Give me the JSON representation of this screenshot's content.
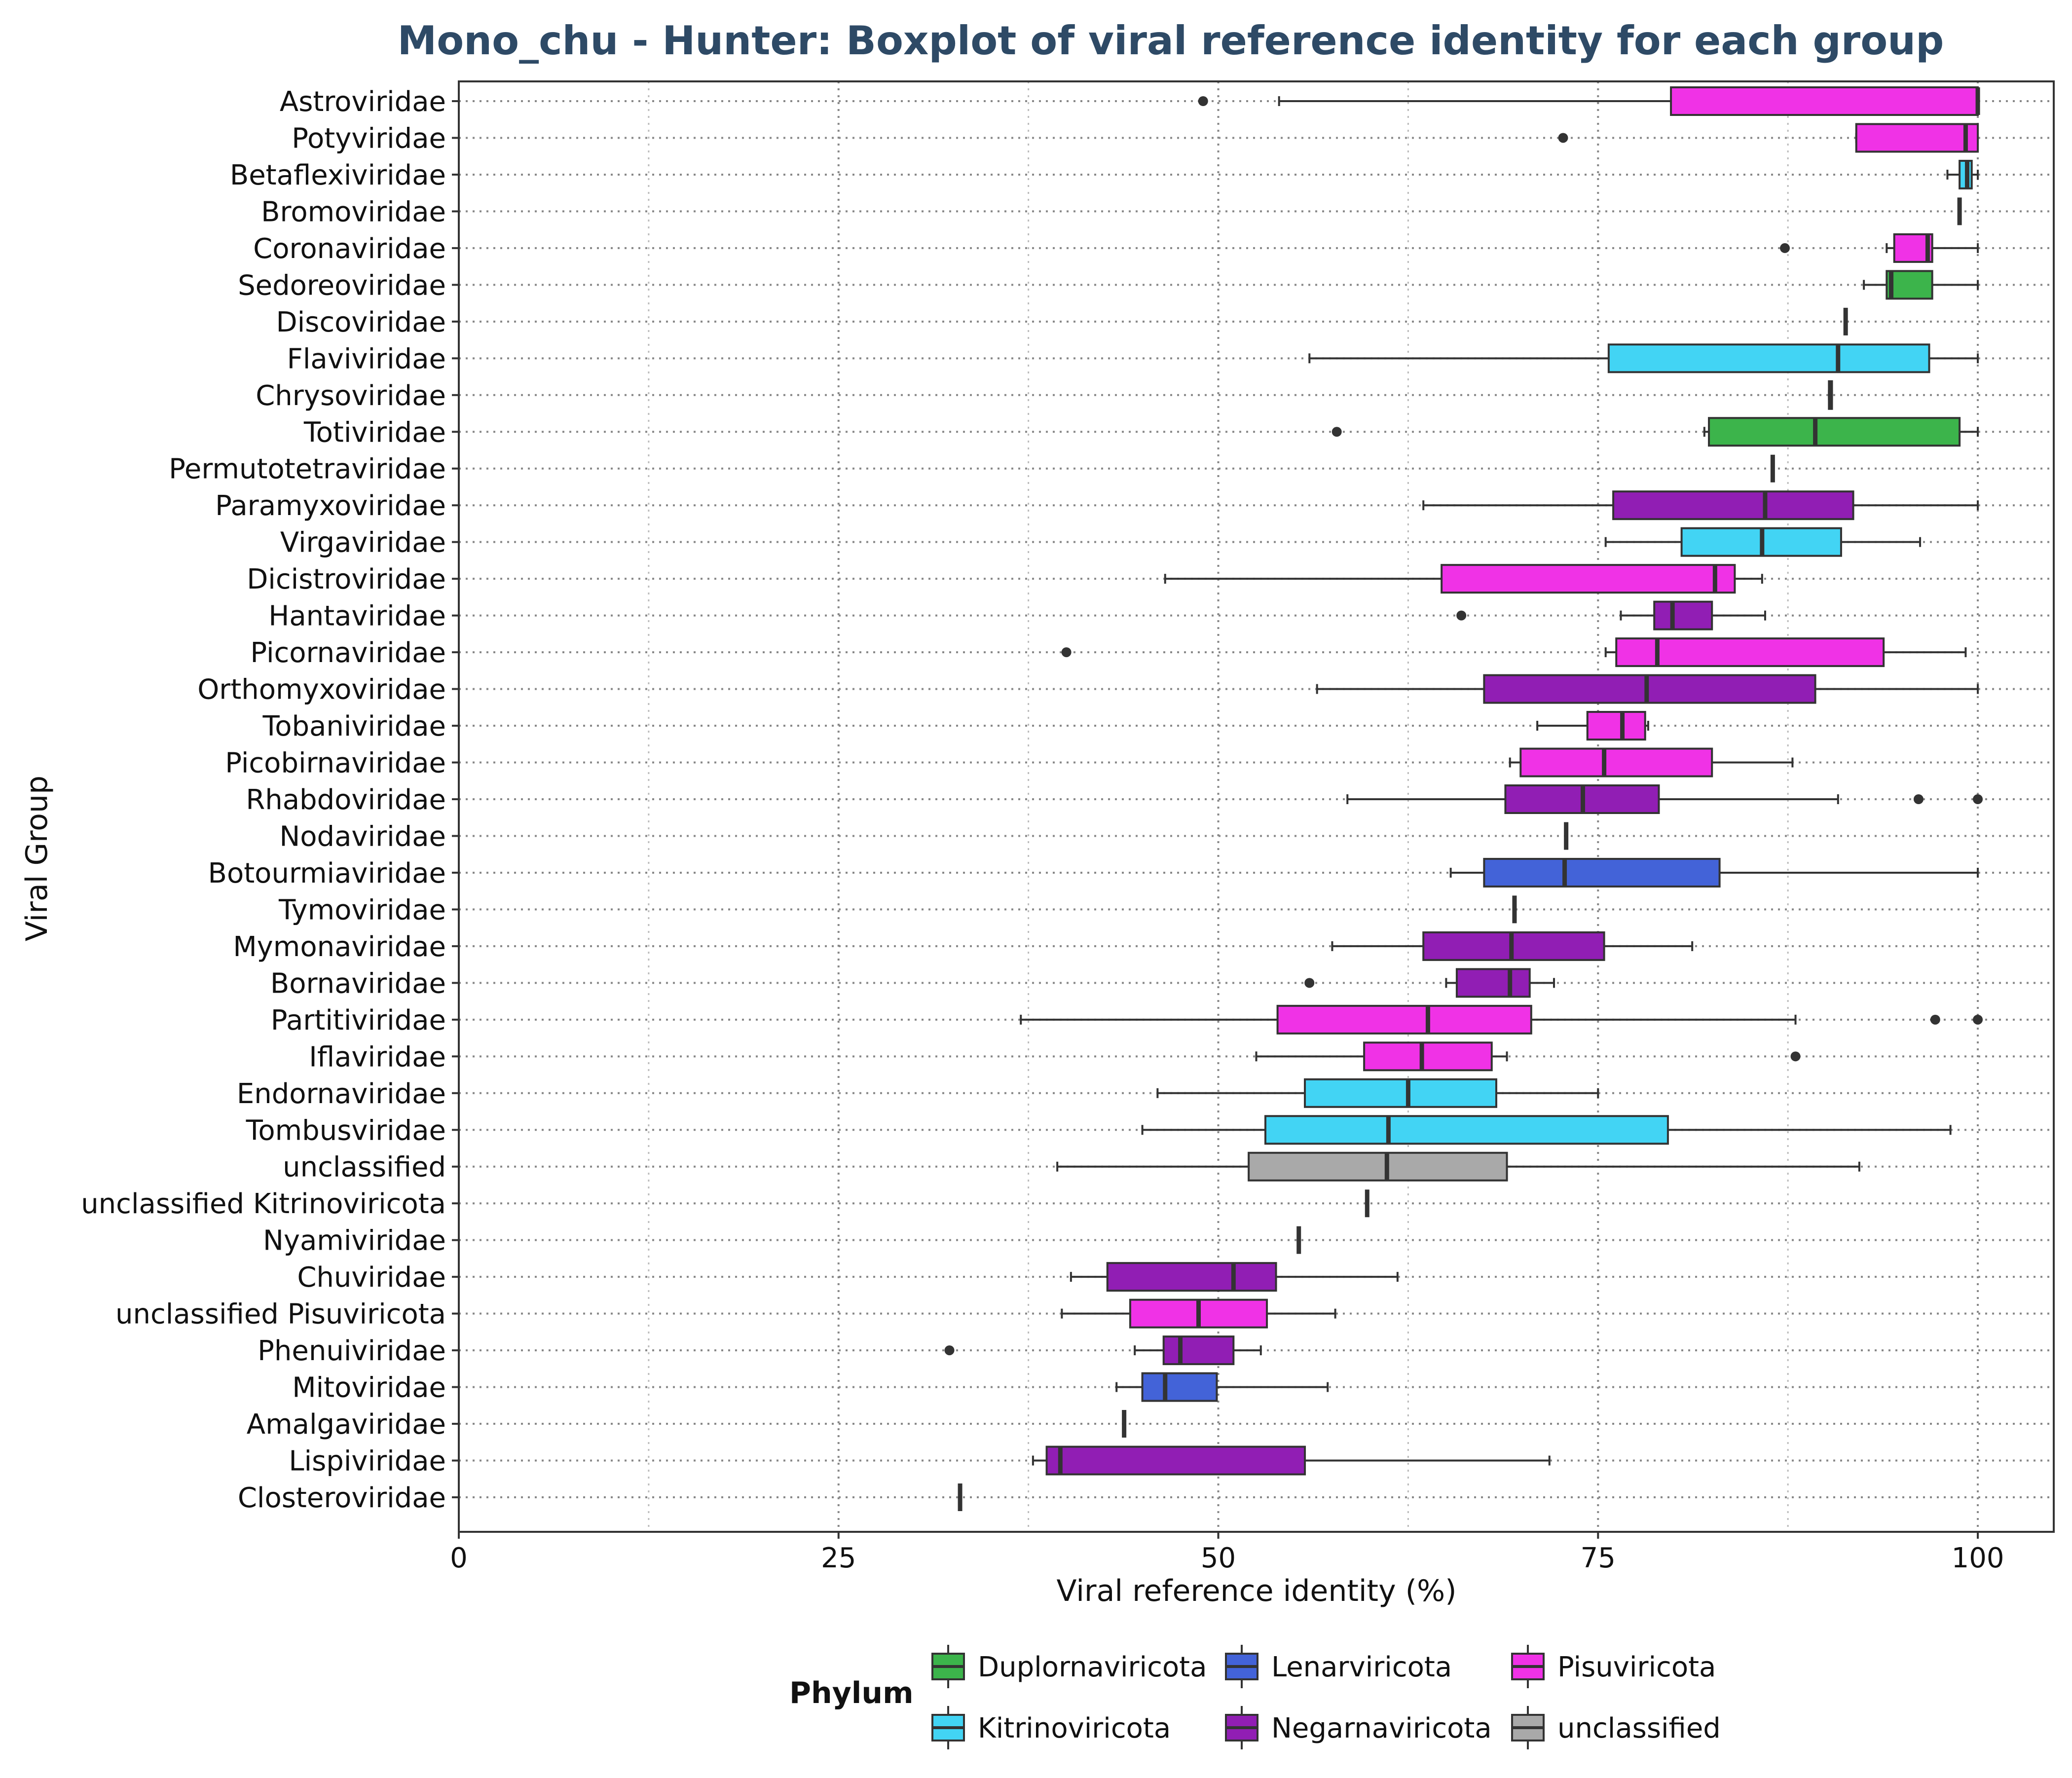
{
  "chart_data": {
    "type": "boxplot",
    "title": "Mono_chu - Hunter: Boxplot of viral reference identity for each group",
    "xlabel": "Viral reference identity (%)",
    "ylabel": "Viral Group",
    "xlim": [
      0,
      105
    ],
    "xticks": [
      0,
      25,
      50,
      75,
      100
    ],
    "xtick_labels": [
      "0",
      "25",
      "50",
      "75",
      "100"
    ],
    "grid": true,
    "legend": {
      "title": "Phylum",
      "placement": "bottom",
      "entries": [
        "Duplornaviricota",
        "Lenarviricota",
        "Pisuviricota",
        "Kitrinoviricota",
        "Negarnaviricota",
        "unclassified"
      ]
    },
    "phylum_colors": {
      "Duplornaviricota": "#3cb44b",
      "Lenarviricota": "#4363d8",
      "Pisuviricota": "#f032e6",
      "Kitrinoviricota": "#42d4f4",
      "Negarnaviricota": "#911eb4",
      "unclassified": "#a9a9a9"
    },
    "groups": [
      {
        "name": "Astroviridae",
        "phylum": "Pisuviricota",
        "whisker_low": 54,
        "q1": 79.8,
        "median": 100,
        "q3": 100,
        "whisker_high": 100,
        "outliers": [
          49
        ]
      },
      {
        "name": "Potyviridae",
        "phylum": "Pisuviricota",
        "whisker_low": 92,
        "q1": 92,
        "median": 99.2,
        "q3": 100,
        "whisker_high": 100,
        "outliers": [
          72.7
        ]
      },
      {
        "name": "Betaflexiviridae",
        "phylum": "Kitrinoviricota",
        "whisker_low": 98,
        "q1": 98.8,
        "median": 99.3,
        "q3": 99.6,
        "whisker_high": 100,
        "outliers": []
      },
      {
        "name": "Bromoviridae",
        "phylum": "Kitrinoviricota",
        "whisker_low": 98.8,
        "q1": 98.8,
        "median": 98.8,
        "q3": 98.8,
        "whisker_high": 98.8,
        "outliers": []
      },
      {
        "name": "Coronaviridae",
        "phylum": "Pisuviricota",
        "whisker_low": 94,
        "q1": 94.5,
        "median": 96.7,
        "q3": 97,
        "whisker_high": 100,
        "outliers": [
          87.3
        ]
      },
      {
        "name": "Sedoreoviridae",
        "phylum": "Duplornaviricota",
        "whisker_low": 92.5,
        "q1": 94,
        "median": 94.3,
        "q3": 97,
        "whisker_high": 100,
        "outliers": []
      },
      {
        "name": "Discoviridae",
        "phylum": "Duplornaviricota",
        "whisker_low": 91.3,
        "q1": 91.3,
        "median": 91.3,
        "q3": 91.3,
        "whisker_high": 91.3,
        "outliers": []
      },
      {
        "name": "Flaviviridae",
        "phylum": "Kitrinoviricota",
        "whisker_low": 56,
        "q1": 75.7,
        "median": 90.8,
        "q3": 96.8,
        "whisker_high": 100,
        "outliers": []
      },
      {
        "name": "Chrysoviridae",
        "phylum": "Duplornaviricota",
        "whisker_low": 90.2,
        "q1": 90.2,
        "median": 90.3,
        "q3": 90.4,
        "whisker_high": 90.4,
        "outliers": []
      },
      {
        "name": "Totiviridae",
        "phylum": "Duplornaviricota",
        "whisker_low": 82,
        "q1": 82.3,
        "median": 89.3,
        "q3": 98.8,
        "whisker_high": 100,
        "outliers": [
          57.8
        ]
      },
      {
        "name": "Permutotetraviridae",
        "phylum": "Pisuviricota",
        "whisker_low": 86.5,
        "q1": 86.5,
        "median": 86.5,
        "q3": 86.5,
        "whisker_high": 86.5,
        "outliers": []
      },
      {
        "name": "Paramyxoviridae",
        "phylum": "Negarnaviricota",
        "whisker_low": 63.5,
        "q1": 76,
        "median": 86,
        "q3": 91.8,
        "whisker_high": 100,
        "outliers": []
      },
      {
        "name": "Virgaviridae",
        "phylum": "Kitrinoviricota",
        "whisker_low": 75.5,
        "q1": 80.5,
        "median": 85.8,
        "q3": 91,
        "whisker_high": 96.2,
        "outliers": []
      },
      {
        "name": "Dicistroviridae",
        "phylum": "Pisuviricota",
        "whisker_low": 46.5,
        "q1": 64.7,
        "median": 82.7,
        "q3": 84,
        "whisker_high": 85.8,
        "outliers": []
      },
      {
        "name": "Hantaviridae",
        "phylum": "Negarnaviricota",
        "whisker_low": 76.5,
        "q1": 78.7,
        "median": 79.9,
        "q3": 82.5,
        "whisker_high": 86,
        "outliers": [
          66
        ]
      },
      {
        "name": "Picornaviridae",
        "phylum": "Pisuviricota",
        "whisker_low": 75.5,
        "q1": 76.2,
        "median": 78.9,
        "q3": 93.8,
        "whisker_high": 99.2,
        "outliers": [
          40
        ]
      },
      {
        "name": "Orthomyxoviridae",
        "phylum": "Negarnaviricota",
        "whisker_low": 56.5,
        "q1": 67.5,
        "median": 78.2,
        "q3": 89.3,
        "whisker_high": 100,
        "outliers": []
      },
      {
        "name": "Tobaniviridae",
        "phylum": "Pisuviricota",
        "whisker_low": 71,
        "q1": 74.3,
        "median": 76.6,
        "q3": 78.1,
        "whisker_high": 78.3,
        "outliers": []
      },
      {
        "name": "Picobirnaviridae",
        "phylum": "Pisuviricota",
        "whisker_low": 69.2,
        "q1": 69.9,
        "median": 75.4,
        "q3": 82.5,
        "whisker_high": 87.8,
        "outliers": []
      },
      {
        "name": "Rhabdoviridae",
        "phylum": "Negarnaviricota",
        "whisker_low": 58.5,
        "q1": 68.9,
        "median": 74,
        "q3": 79,
        "whisker_high": 90.8,
        "outliers": [
          96.1,
          100
        ]
      },
      {
        "name": "Nodaviridae",
        "phylum": "Pisuviricota",
        "whisker_low": 72.9,
        "q1": 72.9,
        "median": 72.9,
        "q3": 72.9,
        "whisker_high": 72.9,
        "outliers": []
      },
      {
        "name": "Botourmiaviridae",
        "phylum": "Lenarviricota",
        "whisker_low": 65.3,
        "q1": 67.5,
        "median": 72.8,
        "q3": 83,
        "whisker_high": 100,
        "outliers": []
      },
      {
        "name": "Tymoviridae",
        "phylum": "Kitrinoviricota",
        "whisker_low": 69.5,
        "q1": 69.5,
        "median": 69.5,
        "q3": 69.5,
        "whisker_high": 69.5,
        "outliers": []
      },
      {
        "name": "Mymonaviridae",
        "phylum": "Negarnaviricota",
        "whisker_low": 57.5,
        "q1": 63.5,
        "median": 69.3,
        "q3": 75.4,
        "whisker_high": 81.2,
        "outliers": []
      },
      {
        "name": "Bornaviridae",
        "phylum": "Negarnaviricota",
        "whisker_low": 65,
        "q1": 65.7,
        "median": 69.2,
        "q3": 70.5,
        "whisker_high": 72.1,
        "outliers": [
          56
        ]
      },
      {
        "name": "Partitiviridae",
        "phylum": "Pisuviricota",
        "whisker_low": 37,
        "q1": 53.9,
        "median": 63.8,
        "q3": 70.6,
        "whisker_high": 88,
        "outliers": [
          97.2,
          100
        ]
      },
      {
        "name": "Iflaviridae",
        "phylum": "Pisuviricota",
        "whisker_low": 52.5,
        "q1": 59.6,
        "median": 63.4,
        "q3": 68,
        "whisker_high": 69,
        "outliers": [
          88
        ]
      },
      {
        "name": "Endornaviridae",
        "phylum": "Kitrinoviricota",
        "whisker_low": 46,
        "q1": 55.7,
        "median": 62.5,
        "q3": 68.3,
        "whisker_high": 75,
        "outliers": []
      },
      {
        "name": "Tombusviridae",
        "phylum": "Kitrinoviricota",
        "whisker_low": 45,
        "q1": 53.1,
        "median": 61.2,
        "q3": 79.6,
        "whisker_high": 98.2,
        "outliers": []
      },
      {
        "name": "unclassified",
        "phylum": "unclassified",
        "whisker_low": 39.4,
        "q1": 52,
        "median": 61.1,
        "q3": 69,
        "whisker_high": 92.2,
        "outliers": []
      },
      {
        "name": "unclassified Kitrinoviricota",
        "phylum": "Kitrinoviricota",
        "whisker_low": 59.8,
        "q1": 59.8,
        "median": 59.8,
        "q3": 59.8,
        "whisker_high": 59.8,
        "outliers": []
      },
      {
        "name": "Nyamiviridae",
        "phylum": "Negarnaviricota",
        "whisker_low": 55.3,
        "q1": 55.3,
        "median": 55.3,
        "q3": 55.3,
        "whisker_high": 55.3,
        "outliers": []
      },
      {
        "name": "Chuviridae",
        "phylum": "Negarnaviricota",
        "whisker_low": 40.3,
        "q1": 42.7,
        "median": 51,
        "q3": 53.8,
        "whisker_high": 61.8,
        "outliers": []
      },
      {
        "name": "unclassified Pisuviricota",
        "phylum": "Pisuviricota",
        "whisker_low": 39.7,
        "q1": 44.2,
        "median": 48.7,
        "q3": 53.2,
        "whisker_high": 57.7,
        "outliers": []
      },
      {
        "name": "Phenuiviridae",
        "phylum": "Negarnaviricota",
        "whisker_low": 44.5,
        "q1": 46.4,
        "median": 47.5,
        "q3": 51,
        "whisker_high": 52.8,
        "outliers": [
          32.3
        ]
      },
      {
        "name": "Mitoviridae",
        "phylum": "Lenarviricota",
        "whisker_low": 43.3,
        "q1": 45,
        "median": 46.5,
        "q3": 49.9,
        "whisker_high": 57.2,
        "outliers": []
      },
      {
        "name": "Amalgaviridae",
        "phylum": "Duplornaviricota",
        "whisker_low": 43.8,
        "q1": 43.8,
        "median": 43.8,
        "q3": 43.8,
        "whisker_high": 43.8,
        "outliers": []
      },
      {
        "name": "Lispiviridae",
        "phylum": "Negarnaviricota",
        "whisker_low": 37.8,
        "q1": 38.7,
        "median": 39.6,
        "q3": 55.7,
        "whisker_high": 71.8,
        "outliers": []
      },
      {
        "name": "Closteroviridae",
        "phylum": "Kitrinoviricota",
        "whisker_low": 33,
        "q1": 33,
        "median": 33,
        "q3": 33,
        "whisker_high": 33,
        "outliers": []
      }
    ]
  }
}
